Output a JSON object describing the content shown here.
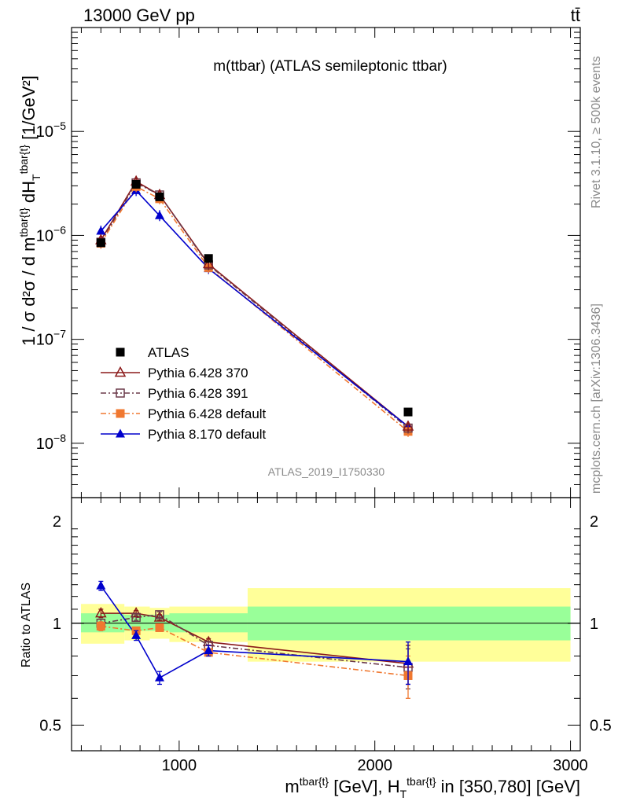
{
  "header": {
    "left": "13000 GeV pp",
    "right": "tt̄",
    "plot_title": "m(ttbar) (ATLAS semileptonic ttbar)",
    "analysis_id": "ATLAS_2019_I1750330",
    "side_text_1": "Rivet 3.1.10, ≥ 500k events",
    "side_text_2": "mcplots.cern.ch [arXiv:1306.3436]"
  },
  "axes": {
    "ylabel_main": "1 / σ d²σ / d m^{tbar{t}} dH_T^{tbar{t}} [1/GeV²]",
    "ylabel_ratio": "Ratio to ATLAS",
    "xlabel": "m^{tbar{t}} [GeV], H_T^{tbar{t}} in [350,780] [GeV]"
  },
  "chart_data": [
    {
      "type": "line",
      "panel": "main",
      "yscale": "log",
      "xlim": [
        450,
        3050
      ],
      "ylim": [
        3e-09,
        0.0001
      ],
      "x_tick_labels": [
        "1000",
        "2000",
        "3000"
      ],
      "y_tick_labels": [
        "10^-8",
        "10^-7",
        "10^-6",
        "10^-5"
      ],
      "legend_position": "lower-left",
      "bins": [
        [
          450,
          720
        ],
        [
          720,
          850
        ],
        [
          850,
          950
        ],
        [
          950,
          1350
        ],
        [
          1350,
          3000
        ]
      ],
      "x": [
        600,
        780,
        900,
        1150,
        2170
      ],
      "series": [
        {
          "name": "ATLAS",
          "color": "#000000",
          "marker": "square-filled",
          "line": "none",
          "y": [
            8.5e-07,
            3.1e-06,
            2.35e-06,
            6e-07,
            2e-08
          ]
        },
        {
          "name": "Pythia 6.428 370",
          "color": "#8b1a1a",
          "marker": "triangle-open",
          "line": "solid",
          "y": [
            9e-07,
            3.3e-06,
            2.45e-06,
            5.3e-07,
            1.45e-08
          ]
        },
        {
          "name": "Pythia 6.428 391",
          "color": "#6b3a4a",
          "marker": "square-open",
          "line": "dashdot",
          "y": [
            8.6e-07,
            3.2e-06,
            2.45e-06,
            5.2e-07,
            1.4e-08
          ]
        },
        {
          "name": "Pythia 6.428 default",
          "color": "#f07830",
          "marker": "square-filled",
          "line": "dashdot",
          "y": [
            8.4e-07,
            2.95e-06,
            2.25e-06,
            4.9e-07,
            1.3e-08
          ]
        },
        {
          "name": "Pythia 8.170 default",
          "color": "#0000cc",
          "marker": "triangle-filled",
          "line": "solid",
          "y": [
            1.1e-06,
            2.7e-06,
            1.55e-06,
            4.8e-07,
            1.45e-08
          ]
        }
      ]
    },
    {
      "type": "line",
      "panel": "ratio",
      "yscale": "log",
      "xlim": [
        450,
        3050
      ],
      "ylim": [
        0.42,
        2.35
      ],
      "y_tick_labels": [
        "0.5",
        "1",
        "2"
      ],
      "reference_line": 1,
      "bands": {
        "inner_color": "#99ff99",
        "outer_color": "#ffff99",
        "bins": [
          [
            450,
            720
          ],
          [
            720,
            850
          ],
          [
            850,
            950
          ],
          [
            950,
            1350
          ],
          [
            1350,
            3000
          ]
        ],
        "inner": [
          [
            0.94,
            1.07
          ],
          [
            0.95,
            1.06
          ],
          [
            0.95,
            1.06
          ],
          [
            0.94,
            1.07
          ],
          [
            0.89,
            1.12
          ]
        ],
        "outer": [
          [
            0.87,
            1.14
          ],
          [
            0.89,
            1.12
          ],
          [
            0.9,
            1.11
          ],
          [
            0.88,
            1.12
          ],
          [
            0.77,
            1.27
          ]
        ]
      },
      "x": [
        600,
        780,
        900,
        1150,
        2170
      ],
      "series": [
        {
          "name": "Pythia 6.428 370",
          "color": "#8b1a1a",
          "marker": "triangle-open",
          "line": "solid",
          "y": [
            1.07,
            1.07,
            1.04,
            0.88,
            0.76
          ],
          "err": [
            0.03,
            0.02,
            0.02,
            0.02,
            0.1
          ]
        },
        {
          "name": "Pythia 6.428 391",
          "color": "#6b3a4a",
          "marker": "square-open",
          "line": "dashdot",
          "y": [
            1.0,
            1.04,
            1.06,
            0.86,
            0.74
          ],
          "err": [
            0.03,
            0.02,
            0.02,
            0.02,
            0.1
          ]
        },
        {
          "name": "Pythia 6.428 default",
          "color": "#f07830",
          "marker": "square-filled",
          "line": "dashdot",
          "y": [
            0.98,
            0.95,
            0.97,
            0.82,
            0.7
          ],
          "err": [
            0.03,
            0.02,
            0.02,
            0.02,
            0.1
          ]
        },
        {
          "name": "Pythia 8.170 default",
          "color": "#0000cc",
          "marker": "triangle-filled",
          "line": "solid",
          "y": [
            1.29,
            0.92,
            0.69,
            0.83,
            0.77
          ],
          "err": [
            0.04,
            0.03,
            0.03,
            0.03,
            0.11
          ]
        }
      ]
    }
  ]
}
